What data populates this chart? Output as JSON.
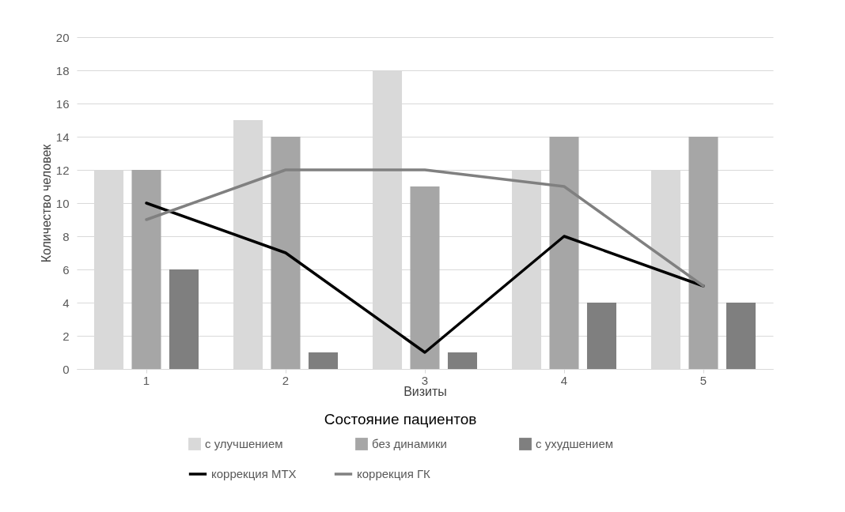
{
  "chart_data": {
    "type": "bar",
    "xlabel": "Визиты",
    "ylabel": "Количество человек",
    "legend_title": "Состояние пациентов",
    "categories": [
      "1",
      "2",
      "3",
      "4",
      "5"
    ],
    "series": [
      {
        "name": "с улучшением",
        "color": "#d9d9d9",
        "values": [
          12,
          15,
          18,
          12,
          12
        ]
      },
      {
        "name": "без динамики",
        "color": "#a6a6a6",
        "values": [
          12,
          14,
          11,
          14,
          14
        ]
      },
      {
        "name": "с ухудшением",
        "color": "#7f7f7f",
        "values": [
          6,
          1,
          1,
          4,
          4
        ]
      },
      {
        "name": "коррекция МТХ",
        "type": "line",
        "color": "#000000",
        "values": [
          10,
          7,
          1,
          8,
          5
        ]
      },
      {
        "name": "коррекция ГК",
        "type": "line",
        "color": "#808080",
        "values": [
          9,
          12,
          12,
          11,
          5
        ]
      }
    ],
    "ylim": [
      0,
      20
    ],
    "yticks": [
      0,
      2,
      4,
      6,
      8,
      10,
      12,
      14,
      16,
      18,
      20
    ],
    "grid": "y",
    "legend": "bottom",
    "marker": "none",
    "line_style": "solid"
  }
}
